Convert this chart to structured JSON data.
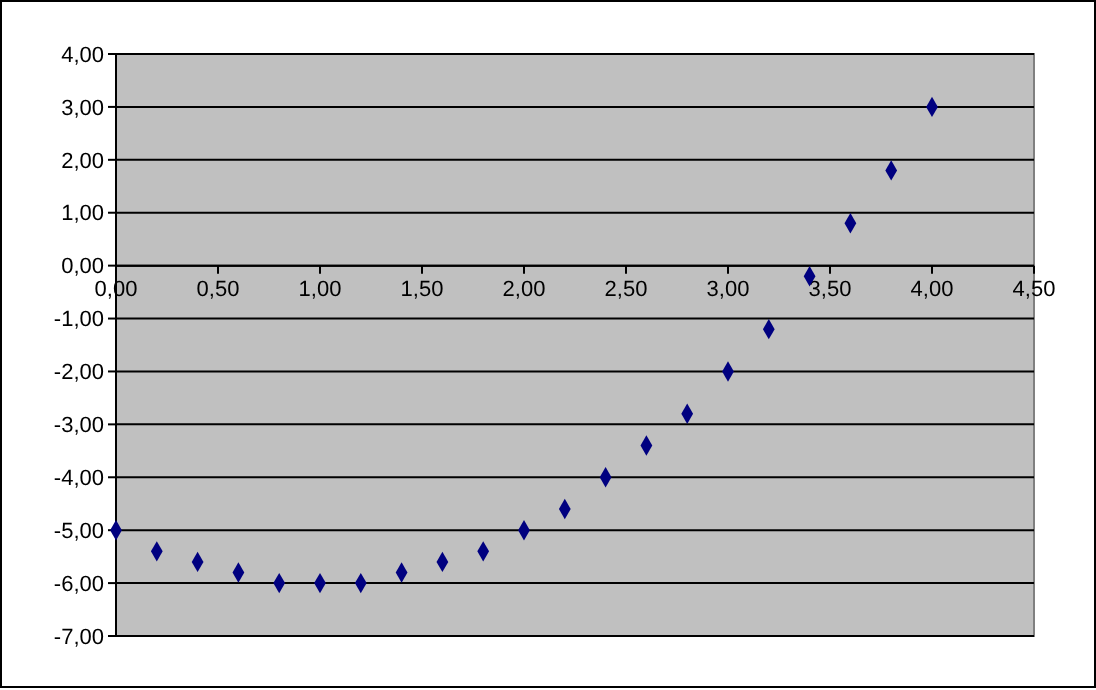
{
  "chart_data": {
    "type": "scatter",
    "x": [
      0,
      0.2,
      0.4,
      0.6,
      0.8,
      1,
      1.2,
      1.4,
      1.6,
      1.8,
      2,
      2.2,
      2.4,
      2.6,
      2.8,
      3,
      3.2,
      3.4,
      3.6,
      3.8,
      4
    ],
    "series": [
      {
        "color": "#000080",
        "values": [
          -5,
          -5.4,
          -5.6,
          -5.8,
          -6,
          -6,
          -6,
          -5.8,
          -5.6,
          -5.4,
          -5,
          -4.6,
          -4,
          -3.4,
          -2.8,
          -2,
          -1.2,
          -0.2,
          0.8,
          1.8,
          3
        ]
      }
    ],
    "xlim": [
      0,
      4.5
    ],
    "xticks": [
      {
        "value": 0,
        "label": "0,00"
      },
      {
        "value": 0.5,
        "label": "0,50"
      },
      {
        "value": 1,
        "label": "1,00"
      },
      {
        "value": 1.5,
        "label": "1,50"
      },
      {
        "value": 2,
        "label": "2,00"
      },
      {
        "value": 2.5,
        "label": "2,50"
      },
      {
        "value": 3,
        "label": "3,00"
      },
      {
        "value": 3.5,
        "label": "3,50"
      },
      {
        "value": 4,
        "label": "4,00"
      },
      {
        "value": 4.5,
        "label": "4,50"
      }
    ],
    "ylim": [
      -7,
      4
    ],
    "yticks": [
      {
        "value": -7,
        "label": "-7,00"
      },
      {
        "value": -6,
        "label": "-6,00"
      },
      {
        "value": -5,
        "label": "-5,00"
      },
      {
        "value": -4,
        "label": "-4,00"
      },
      {
        "value": -3,
        "label": "-3,00"
      },
      {
        "value": -2,
        "label": "-2,00"
      },
      {
        "value": -1,
        "label": "-1,00"
      },
      {
        "value": 0,
        "label": "0,00"
      },
      {
        "value": 1,
        "label": "1,00"
      },
      {
        "value": 2,
        "label": "2,00"
      },
      {
        "value": 3,
        "label": "3,00"
      },
      {
        "value": 4,
        "label": "4,00"
      }
    ],
    "grid": "y",
    "marker": "diamond"
  }
}
